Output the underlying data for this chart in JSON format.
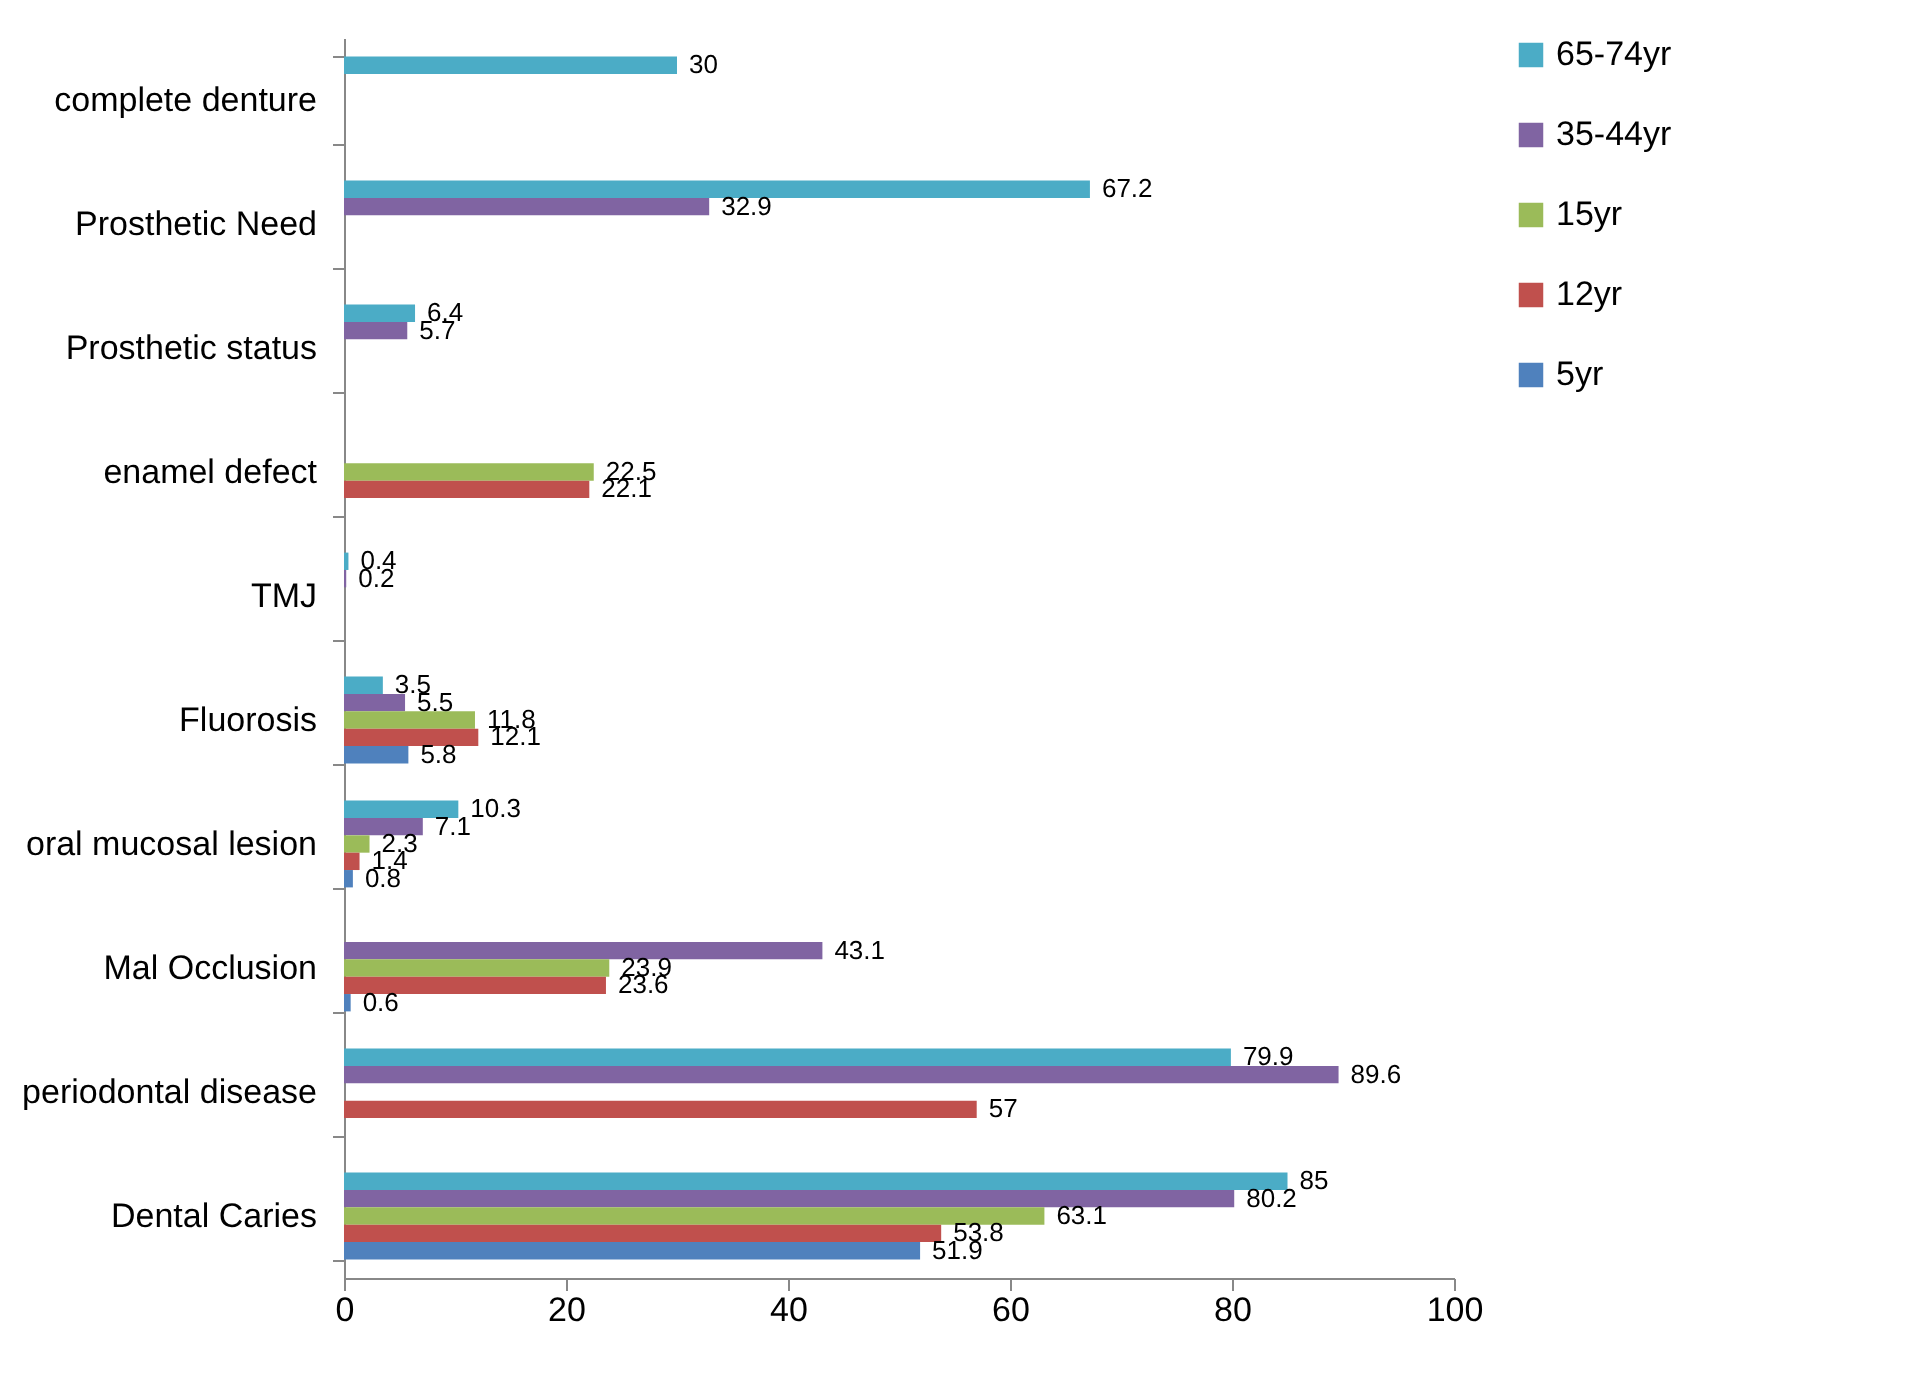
{
  "chart_data": {
    "type": "bar",
    "orientation": "horizontal",
    "categories": [
      "complete denture",
      "Prosthetic Need",
      "Prosthetic status",
      "enamel defect",
      "TMJ",
      "Fluorosis",
      "oral mucosal lesion",
      "Mal Occlusion",
      "periodontal disease",
      "Dental Caries"
    ],
    "series": [
      {
        "name": "65-74yr",
        "color": "#4bacc6",
        "values": [
          30,
          67.2,
          6.4,
          null,
          0.4,
          3.5,
          10.3,
          null,
          79.9,
          85
        ]
      },
      {
        "name": "35-44yr",
        "color": "#8064a2",
        "values": [
          null,
          32.9,
          5.7,
          null,
          0.2,
          5.5,
          7.1,
          43.1,
          89.6,
          80.2
        ]
      },
      {
        "name": "15yr",
        "color": "#9bbb59",
        "values": [
          null,
          null,
          null,
          22.5,
          null,
          11.8,
          2.3,
          23.9,
          null,
          63.1
        ]
      },
      {
        "name": "12yr",
        "color": "#c0504d",
        "values": [
          null,
          null,
          null,
          22.1,
          null,
          12.1,
          1.4,
          23.6,
          57,
          53.8
        ]
      },
      {
        "name": "5yr",
        "color": "#4f81bd",
        "values": [
          null,
          null,
          null,
          null,
          null,
          5.8,
          0.8,
          0.6,
          null,
          51.9
        ]
      }
    ],
    "xlim": [
      0,
      100
    ],
    "xticks": [
      0,
      20,
      40,
      60,
      80,
      100
    ],
    "grid": false,
    "legend": "right",
    "data_labels": true
  }
}
